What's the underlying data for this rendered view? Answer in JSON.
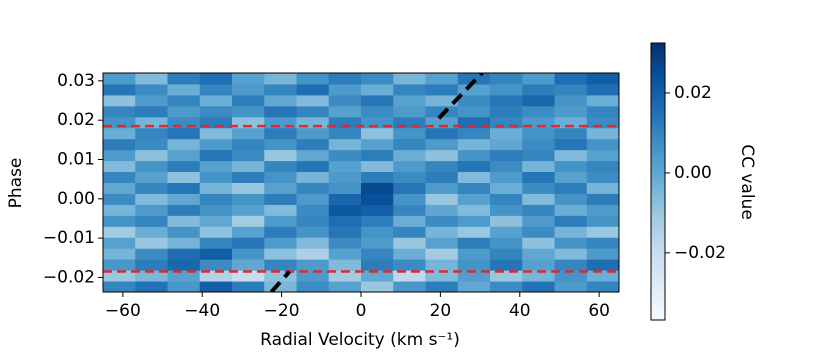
{
  "chart_data": {
    "type": "heatmap",
    "x_label": "Radial Velocity (km s⁻¹)",
    "y_label": "Phase",
    "colorbar_label": "CC value",
    "xlim": [
      -65,
      65
    ],
    "ylim": [
      -0.0237,
      0.032
    ],
    "clim": [
      -0.0368,
      0.0325
    ],
    "colormap": [
      "#f7fbff",
      "#deebf7",
      "#c6dbef",
      "#9ecae1",
      "#6baed6",
      "#4292c6",
      "#2171b5",
      "#08519c",
      "#08306b"
    ],
    "xticks": [
      {
        "value": -60,
        "label": "−60"
      },
      {
        "value": -40,
        "label": "−40"
      },
      {
        "value": -20,
        "label": "−20"
      },
      0,
      20,
      40,
      60
    ],
    "yticks": [
      {
        "value": -0.02,
        "label": "−0.02"
      },
      {
        "value": -0.01,
        "label": "−0.01"
      },
      {
        "value": 0,
        "label": "0.00"
      },
      0.01,
      0.02,
      0.03
    ],
    "cticks": [
      {
        "value": -0.02,
        "label": "−0.02"
      },
      {
        "value": 0,
        "label": "0.00"
      },
      0.02
    ],
    "z": [
      [
        0.01,
        0.015,
        0.005,
        0.02,
        0.012,
        -0.005,
        0.008,
        0.002,
        -0.01,
        0.005,
        0.012,
        0.0,
        0.008,
        0.015,
        0.004,
        0.01
      ],
      [
        -0.01,
        -0.005,
        0.002,
        -0.015,
        -0.02,
        -0.008,
        0.004,
        -0.012,
        0.0,
        -0.018,
        -0.006,
        0.003,
        -0.01,
        -0.004,
        0.006,
        -0.002
      ],
      [
        0.005,
        0.012,
        0.018,
        0.008,
        0.0,
        0.01,
        0.004,
        -0.006,
        0.012,
        0.008,
        -0.004,
        0.006,
        0.014,
        0.002,
        0.01,
        0.016
      ],
      [
        -0.004,
        0.008,
        0.016,
        0.02,
        0.006,
        -0.008,
        -0.014,
        0.002,
        0.01,
        -0.002,
        -0.012,
        0.004,
        0.01,
        0.0,
        -0.006,
        0.004
      ],
      [
        0.002,
        -0.01,
        -0.004,
        0.01,
        0.014,
        0.004,
        -0.006,
        0.008,
        0.004,
        -0.01,
        0.002,
        0.012,
        0.006,
        -0.008,
        0.006,
        0.01
      ],
      [
        -0.012,
        -0.002,
        0.006,
        -0.008,
        0.002,
        0.012,
        0.006,
        0.014,
        0.006,
        0.01,
        -0.004,
        -0.01,
        0.002,
        0.008,
        -0.004,
        -0.01
      ],
      [
        0.006,
        0.01,
        -0.006,
        0.0,
        -0.012,
        0.004,
        0.01,
        0.016,
        0.012,
        -0.002,
        0.008,
        0.004,
        -0.008,
        0.004,
        0.012,
        0.006
      ],
      [
        -0.004,
        0.004,
        0.012,
        0.006,
        0.002,
        -0.006,
        0.008,
        0.022,
        0.02,
        0.01,
        0.0,
        -0.006,
        0.006,
        0.01,
        -0.002,
        0.004
      ],
      [
        0.008,
        -0.006,
        0.0,
        0.01,
        0.006,
        0.012,
        0.004,
        0.018,
        0.024,
        0.006,
        -0.01,
        0.002,
        0.01,
        -0.006,
        0.006,
        0.012
      ],
      [
        0.0,
        0.01,
        0.014,
        -0.004,
        -0.01,
        0.002,
        0.01,
        0.006,
        0.026,
        0.014,
        0.004,
        0.01,
        -0.002,
        0.008,
        0.012,
        -0.004
      ],
      [
        0.01,
        0.002,
        -0.008,
        0.006,
        0.012,
        0.006,
        -0.004,
        0.004,
        0.012,
        0.008,
        0.012,
        -0.006,
        0.004,
        0.014,
        0.002,
        0.008
      ],
      [
        -0.006,
        0.006,
        0.012,
        0.002,
        -0.004,
        0.01,
        0.014,
        0.002,
        -0.006,
        0.004,
        0.01,
        0.014,
        0.008,
        -0.004,
        0.006,
        0.01
      ],
      [
        0.004,
        -0.008,
        0.002,
        0.014,
        0.008,
        -0.01,
        0.0,
        0.008,
        0.012,
        -0.002,
        -0.008,
        0.006,
        0.012,
        0.01,
        -0.006,
        0.002
      ],
      [
        0.012,
        0.008,
        -0.004,
        0.004,
        0.01,
        0.006,
        0.012,
        -0.004,
        0.002,
        0.01,
        0.004,
        -0.004,
        0.0,
        0.008,
        0.014,
        0.006
      ],
      [
        -0.002,
        0.01,
        0.014,
        -0.006,
        0.002,
        0.012,
        0.004,
        0.01,
        -0.008,
        0.006,
        0.014,
        0.01,
        -0.002,
        0.006,
        0.01,
        -0.004
      ],
      [
        0.006,
        -0.004,
        0.008,
        0.012,
        -0.008,
        0.004,
        -0.004,
        0.012,
        0.006,
        0.012,
        0.002,
        0.016,
        0.01,
        0.004,
        -0.002,
        0.008
      ],
      [
        0.01,
        0.012,
        0.004,
        0.008,
        0.006,
        0.014,
        0.01,
        0.002,
        0.008,
        0.004,
        0.01,
        0.006,
        0.012,
        0.008,
        0.004,
        0.01
      ],
      [
        -0.008,
        0.004,
        0.01,
        -0.002,
        0.012,
        0.0,
        -0.006,
        0.008,
        0.014,
        0.002,
        -0.004,
        0.008,
        0.014,
        0.018,
        0.006,
        -0.002
      ],
      [
        0.014,
        0.008,
        -0.002,
        0.01,
        0.004,
        0.01,
        0.016,
        0.004,
        -0.002,
        0.01,
        0.012,
        0.002,
        0.006,
        0.012,
        0.01,
        0.016
      ],
      [
        0.004,
        -0.006,
        0.012,
        0.016,
        0.002,
        -0.004,
        0.006,
        0.012,
        0.008,
        -0.004,
        0.002,
        0.014,
        0.01,
        0.004,
        0.016,
        0.02
      ]
    ],
    "hlines": [
      {
        "y": 0.0185,
        "color": "#e8262b"
      },
      {
        "y": -0.0185,
        "color": "#e8262b"
      }
    ],
    "segments": [
      {
        "x": [
          19.6,
          30.5
        ],
        "y": [
          0.0205,
          0.032
        ],
        "color": "#000000"
      },
      {
        "x": [
          -22.6,
          -18
        ],
        "y": [
          -0.0237,
          -0.0185
        ],
        "color": "#000000"
      }
    ]
  }
}
